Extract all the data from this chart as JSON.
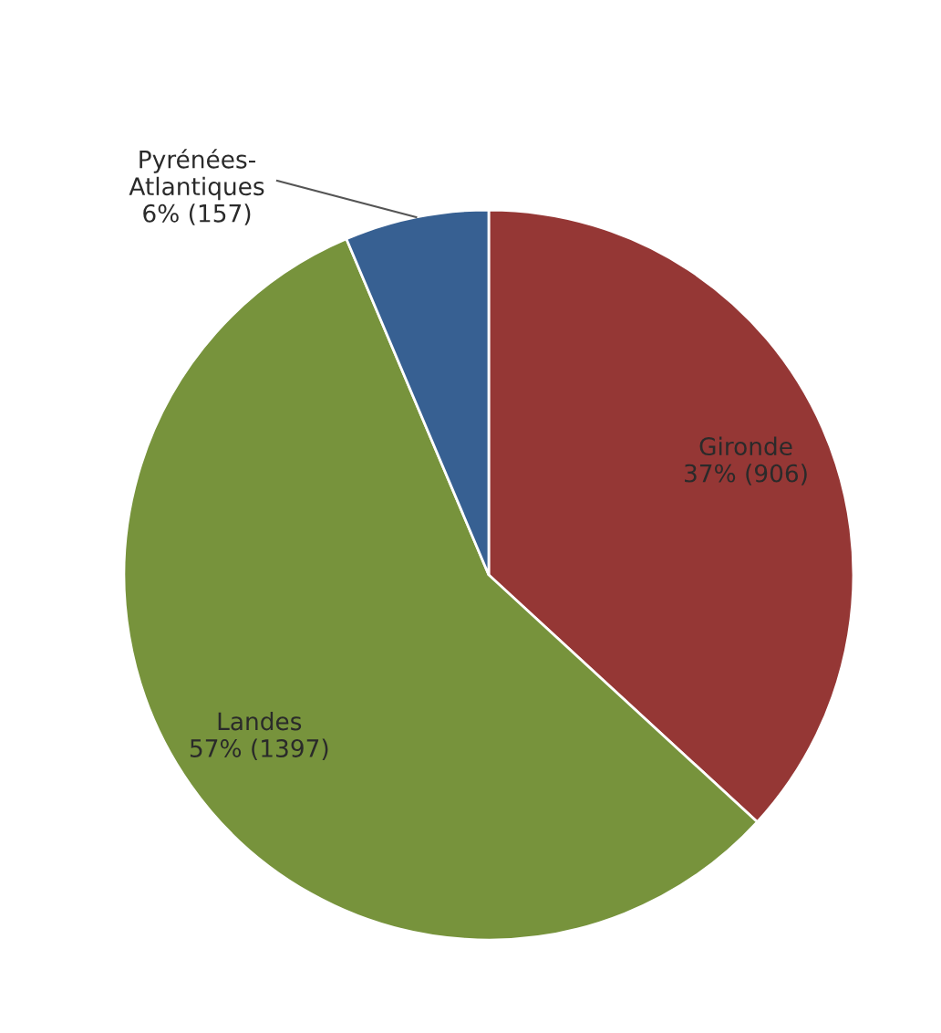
{
  "chart_data": {
    "type": "pie",
    "categories": [
      "Gironde",
      "Landes",
      "Pyrénées-\nAtlantiques"
    ],
    "values": [
      906,
      1397,
      157
    ],
    "colors": [
      "#953735",
      "#77933c",
      "#376092"
    ],
    "value_labels": [
      "37% (906)",
      "57% (1397)",
      "6% (157)"
    ]
  }
}
